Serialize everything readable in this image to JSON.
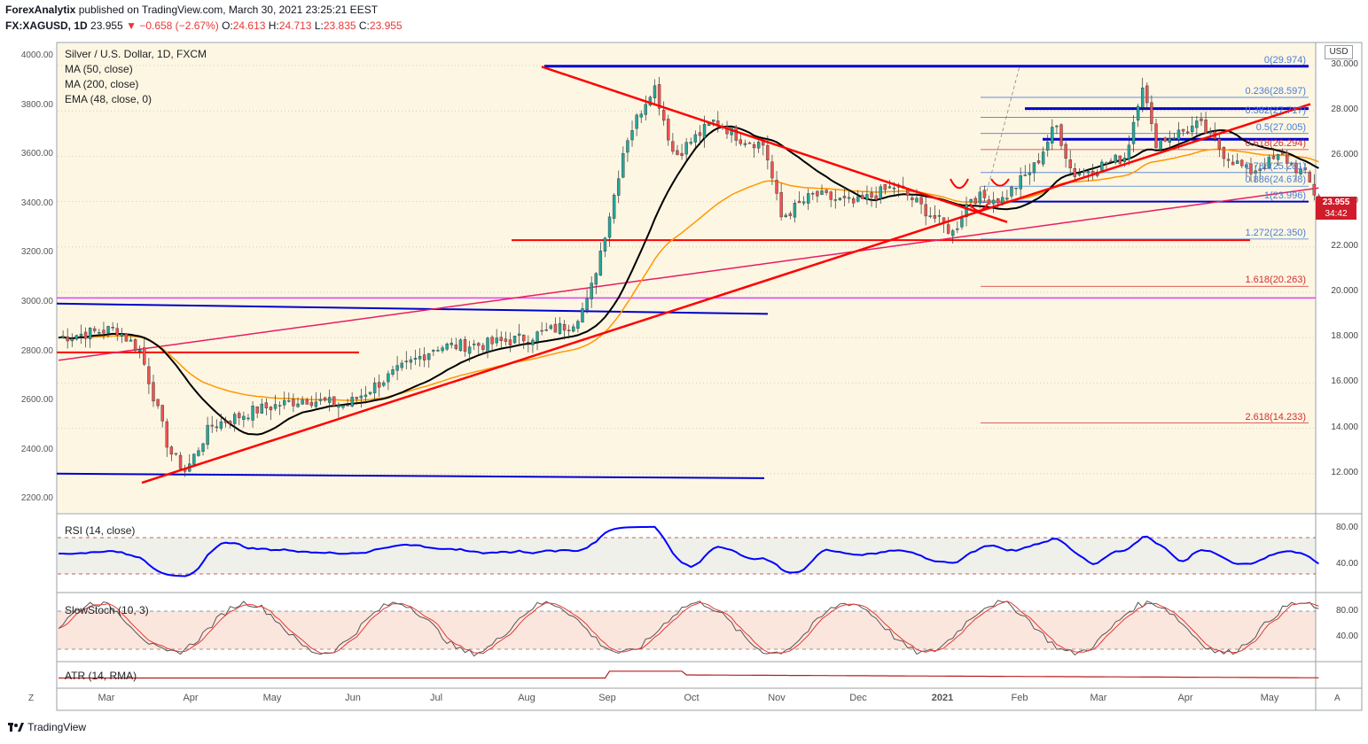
{
  "header": {
    "publisher": "ForexAnalytix",
    "published_text": "published on TradingView.com, March 30, 2021 23:25:21 EEST",
    "symbol": "FX:XAGUSD, 1D",
    "last": "23.955",
    "change": "−0.658 (−2.67%)",
    "o_label": "O:",
    "o": "24.613",
    "h_label": "H:",
    "h": "24.713",
    "l_label": "L:",
    "l": "23.835",
    "c_label": "C:",
    "c": "23.955"
  },
  "legend": {
    "title": "Silver / U.S. Dollar, 1D, FXCM",
    "ma50": "MA (50, close)",
    "ma200": "MA (200, close)",
    "ema48": "EMA (48, close, 0)"
  },
  "indicators": {
    "rsi": "RSI (14, close)",
    "stoch": "SlowStoch (10, 3)",
    "atr": "ATR (14, RMA)"
  },
  "currency_box": "USD",
  "price_badge": {
    "price": "23.955",
    "countdown": "34:42"
  },
  "footer": {
    "brand": "TradingView",
    "left_corner": "Z",
    "right_corner": "A"
  },
  "colors": {
    "background": "#fdf6e3",
    "candle_up": "#26a69a",
    "candle_down": "#ef5350",
    "ma50": "#000000",
    "ma200": "#e91e63",
    "ema48": "#ff9800",
    "trend_red": "#ff0000",
    "level_blue": "#0000cc",
    "magenta": "#e040fb",
    "rsi": "#0000ff",
    "stoch_k": "#555555",
    "stoch_d": "#e53935",
    "atr": "#b71c1c"
  },
  "chart_data": {
    "type": "candlestick",
    "x_ticks": [
      "Mar",
      "Apr",
      "May",
      "Jun",
      "Jul",
      "Aug",
      "Sep",
      "Oct",
      "Nov",
      "Dec",
      "2021",
      "Feb",
      "Mar",
      "Apr",
      "May"
    ],
    "left_axis_ticks": [
      "4000.00",
      "3800.00",
      "3600.00",
      "3400.00",
      "3200.00",
      "3000.00",
      "2800.00",
      "2600.00",
      "2400.00",
      "2200.00"
    ],
    "right_axis_ticks": [
      "30.000",
      "28.000",
      "26.000",
      "24.000",
      "22.000",
      "20.000",
      "18.000",
      "16.000",
      "14.000",
      "12.000"
    ],
    "ylim": [
      11.0,
      30.5
    ],
    "rsi_ticks": [
      "80.00",
      "40.00"
    ],
    "stoch_ticks": [
      "80.00",
      "40.00"
    ],
    "price_key": [
      {
        "m": 0,
        "p": 18.0
      },
      {
        "m": 0.7,
        "p": 18.4
      },
      {
        "m": 1.0,
        "p": 17.4
      },
      {
        "m": 1.35,
        "p": 13.0
      },
      {
        "m": 1.55,
        "p": 12.1
      },
      {
        "m": 1.85,
        "p": 14.1
      },
      {
        "m": 2.4,
        "p": 14.8
      },
      {
        "m": 3.0,
        "p": 15.3
      },
      {
        "m": 3.5,
        "p": 15.0
      },
      {
        "m": 3.9,
        "p": 16.0
      },
      {
        "m": 4.6,
        "p": 17.6
      },
      {
        "m": 5.2,
        "p": 17.7
      },
      {
        "m": 5.7,
        "p": 18.0
      },
      {
        "m": 6.25,
        "p": 18.6
      },
      {
        "m": 6.45,
        "p": 19.6
      },
      {
        "m": 6.75,
        "p": 24.0
      },
      {
        "m": 6.9,
        "p": 26.6
      },
      {
        "m": 7.25,
        "p": 29.2
      },
      {
        "m": 7.5,
        "p": 26.0
      },
      {
        "m": 8.0,
        "p": 27.6
      },
      {
        "m": 8.3,
        "p": 26.8
      },
      {
        "m": 8.6,
        "p": 26.5
      },
      {
        "m": 8.8,
        "p": 23.3
      },
      {
        "m": 9.2,
        "p": 24.3
      },
      {
        "m": 9.7,
        "p": 23.9
      },
      {
        "m": 10.2,
        "p": 24.7
      },
      {
        "m": 10.5,
        "p": 23.8
      },
      {
        "m": 10.9,
        "p": 22.6
      },
      {
        "m": 11.1,
        "p": 24.2
      },
      {
        "m": 11.5,
        "p": 24.1
      },
      {
        "m": 11.9,
        "p": 25.6
      },
      {
        "m": 12.15,
        "p": 27.4
      },
      {
        "m": 12.35,
        "p": 25.2
      },
      {
        "m": 12.7,
        "p": 25.6
      },
      {
        "m": 13.0,
        "p": 26.0
      },
      {
        "m": 13.2,
        "p": 29.3
      },
      {
        "m": 13.35,
        "p": 26.6
      },
      {
        "m": 13.9,
        "p": 27.4
      },
      {
        "m": 14.2,
        "p": 26.1
      },
      {
        "m": 14.5,
        "p": 25.3
      },
      {
        "m": 14.9,
        "p": 26.0
      },
      {
        "m": 15.2,
        "p": 25.1
      },
      {
        "m": 15.35,
        "p": 23.955
      }
    ],
    "fib_levels": [
      {
        "label": "0(29.974)",
        "value": 29.974
      },
      {
        "label": "0.236(28.597)",
        "value": 28.597
      },
      {
        "label": "0.382(27.717)",
        "value": 27.717
      },
      {
        "label": "0.5(27.005)",
        "value": 27.005
      },
      {
        "label": "0.618(26.294)",
        "value": 26.294
      },
      {
        "label": "0.786(25.281)",
        "value": 25.281
      },
      {
        "label": "0.886(24.678)",
        "value": 24.678
      },
      {
        "label": "1(23.996)",
        "value": 23.996
      },
      {
        "label": "1.272(22.350)",
        "value": 22.35
      },
      {
        "label": "1.618(20.263)",
        "value": 20.263
      },
      {
        "label": "2.618(14.233)",
        "value": 14.233
      }
    ]
  }
}
